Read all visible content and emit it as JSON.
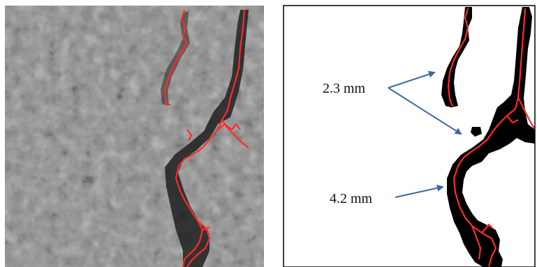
{
  "figure": {
    "left_panel": {
      "name": "grayscale-crack-image"
    },
    "right_panel": {
      "name": "binary-crack-segmentation"
    },
    "annotations": [
      {
        "id": "upper",
        "text": "2.3 mm"
      },
      {
        "id": "lower",
        "text": "4.2 mm"
      }
    ],
    "colors": {
      "skeleton": "#ff2a2a",
      "arrow": "#3e6aa3",
      "crack": "#000000",
      "background_gray": "#8f8f8f"
    }
  }
}
